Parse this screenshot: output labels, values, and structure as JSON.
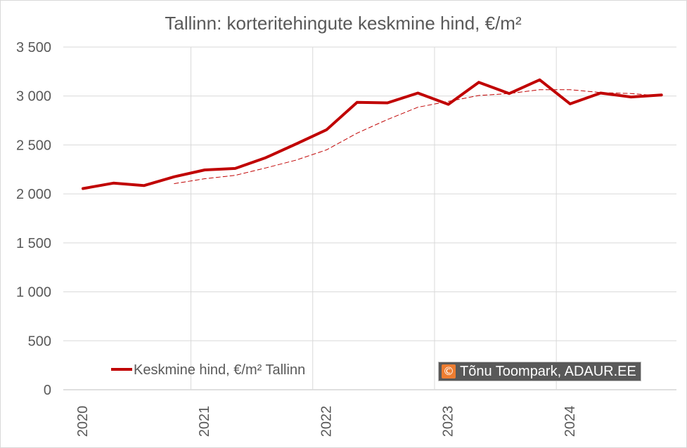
{
  "chart_data": {
    "type": "line",
    "title": "Tallinn: korteritehingute keskmine hind, €/m²",
    "ylim": [
      0,
      3500
    ],
    "yticks": [
      0,
      500,
      1000,
      1500,
      2000,
      2500,
      3000,
      3500
    ],
    "ytick_labels": [
      "0",
      "500",
      "1 000",
      "1 500",
      "2 000",
      "2 500",
      "3 000",
      "3 500"
    ],
    "xtick_labels": [
      "2020",
      "2021",
      "2022",
      "2023",
      "2024"
    ],
    "xtick_quarters": [
      0,
      4,
      8,
      12,
      16
    ],
    "grid": true,
    "legend_position": "bottom-left",
    "series": [
      {
        "name": "Keskmine hind, €/m² Tallinn",
        "color": "#c00000",
        "style": "solid",
        "values": [
          2055,
          2110,
          2085,
          2175,
          2245,
          2260,
          2370,
          2510,
          2655,
          2935,
          2930,
          3030,
          2915,
          3140,
          3025,
          3165,
          2920,
          3030,
          2990,
          3010
        ]
      },
      {
        "color": "#c00000",
        "style": "dashed",
        "trend": "moving-average",
        "values": [
          null,
          null,
          null,
          2105,
          2155,
          2190,
          2265,
          2345,
          2450,
          2620,
          2760,
          2885,
          2945,
          3005,
          3025,
          3065,
          3065,
          3035,
          3025,
          3000
        ]
      }
    ]
  },
  "credit": {
    "icon": "copyright-icon",
    "symbol": "©",
    "text": "Tõnu Toompark, ADAUR.EE",
    "icon_color": "#ed7d31",
    "bg_color": "#595959"
  }
}
